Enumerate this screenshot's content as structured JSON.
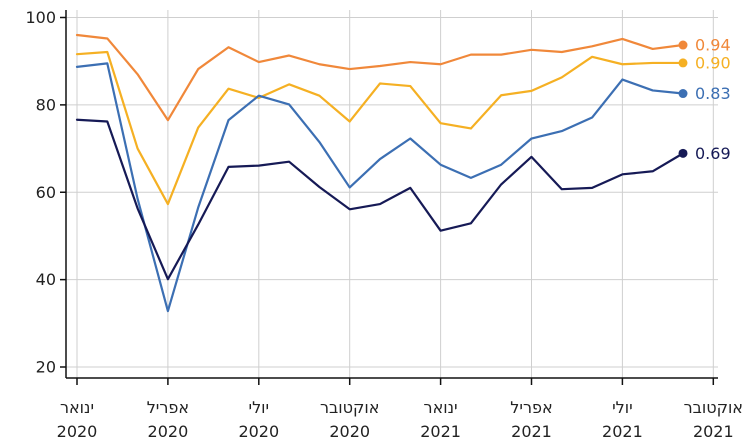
{
  "chart_data": {
    "type": "line",
    "title": "",
    "xlabel": "",
    "ylabel": "",
    "ylim": [
      17,
      102
    ],
    "yticks": [
      20,
      40,
      60,
      80,
      100
    ],
    "xlim": [
      0,
      21.3
    ],
    "x_ticks": [
      {
        "x": 0,
        "line1": "ינואר",
        "line2": "2020"
      },
      {
        "x": 3,
        "line1": "אפריל",
        "line2": "2020"
      },
      {
        "x": 6,
        "line1": "יולי",
        "line2": "2020"
      },
      {
        "x": 9,
        "line1": "אוקטובר",
        "line2": "2020"
      },
      {
        "x": 12,
        "line1": "ינואר",
        "line2": "2021"
      },
      {
        "x": 15,
        "line1": "אפריל",
        "line2": "2021"
      },
      {
        "x": 18,
        "line1": "יולי",
        "line2": "2021"
      },
      {
        "x": 21,
        "line1": "אוקטובר",
        "line2": "2021"
      }
    ],
    "grid": true,
    "series": [
      {
        "color": "#f0883a",
        "end_label": "0.94",
        "values": [
          96,
          95.2,
          87,
          76.5,
          88.2,
          93.2,
          89.8,
          91.3,
          89.3,
          88.2,
          88.9,
          89.8,
          89.3,
          91.5,
          91.5,
          92.6,
          92.1,
          93.4,
          95.1,
          92.8,
          93.7
        ]
      },
      {
        "color": "#f5b023",
        "end_label": "0.90",
        "values": [
          91.6,
          92.1,
          70,
          57.3,
          74.8,
          83.7,
          81.6,
          84.7,
          82.1,
          76.2,
          84.9,
          84.3,
          75.8,
          74.6,
          82.2,
          83.2,
          86.3,
          91,
          89.3,
          89.6,
          89.6
        ]
      },
      {
        "color": "#3c6fb3",
        "end_label": "0.83",
        "values": [
          88.7,
          89.5,
          58.5,
          32.8,
          56.5,
          76.5,
          82.1,
          80.1,
          71.5,
          61.1,
          67.6,
          72.3,
          66.3,
          63.3,
          66.3,
          72.3,
          74,
          77.1,
          85.8,
          83.3,
          82.6
        ]
      },
      {
        "color": "#161a56",
        "end_label": "0.69",
        "values": [
          76.6,
          76.2,
          56.3,
          40.1,
          52.6,
          65.8,
          66.1,
          67,
          61.2,
          56.1,
          57.3,
          61,
          51.2,
          52.9,
          61.8,
          68.1,
          60.7,
          61,
          64.1,
          64.8,
          68.9
        ]
      }
    ]
  }
}
